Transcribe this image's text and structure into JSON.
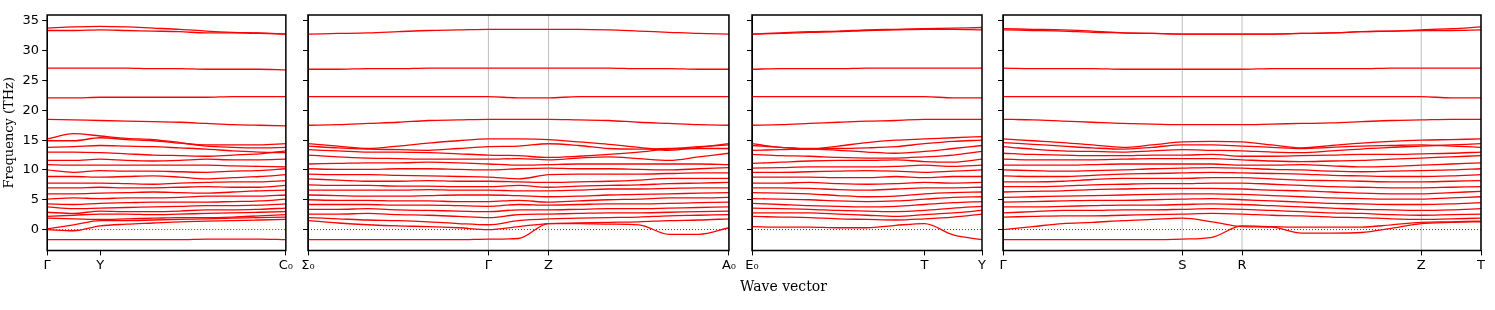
{
  "chart_data": [
    {
      "type": "line",
      "ylabel": "Frequency (THz)",
      "legend": false,
      "tick_labels": "xy",
      "categories": [
        "Γ",
        null,
        "Y",
        null,
        null,
        null,
        null,
        null,
        null,
        "C₀"
      ],
      "ylim": [
        -3.5,
        36
      ],
      "yticks": [
        0,
        5,
        10,
        15,
        20,
        25,
        30,
        35
      ],
      "ref_lines": [
        {
          "axis": "y",
          "value": 0,
          "color": "#0000ff",
          "line_style": "dotted"
        }
      ],
      "series": [
        {
          "color": "#ff0000",
          "values": [
            33.8,
            34.0,
            34.1,
            34.0,
            33.8,
            33.6,
            33.3,
            33.1,
            33.0,
            32.8
          ]
        },
        {
          "color": "#ff0000",
          "values": [
            33.4,
            33.4,
            33.5,
            33.4,
            33.3,
            33.2,
            33.0,
            33.0,
            32.9,
            32.8
          ]
        },
        {
          "color": "#ff0000",
          "values": [
            27.1,
            27.1,
            27.1,
            27.1,
            27.0,
            27.0,
            26.9,
            26.9,
            26.9,
            26.8
          ]
        },
        {
          "color": "#ff0000",
          "values": [
            22.1,
            22.1,
            22.2,
            22.2,
            22.2,
            22.2,
            22.2,
            22.3,
            22.3,
            22.3
          ]
        },
        {
          "color": "#ff0000",
          "values": [
            18.5,
            18.4,
            18.3,
            18.2,
            18.1,
            18.0,
            17.8,
            17.6,
            17.5,
            17.4
          ]
        },
        {
          "color": "#ff0000",
          "values": [
            15.2,
            16.1,
            15.7,
            15.3,
            15.1,
            14.6,
            14.0,
            13.8,
            13.7,
            13.8
          ]
        },
        {
          "color": "#ff0000",
          "values": [
            14.9,
            14.9,
            15.4,
            15.1,
            14.9,
            14.5,
            14.2,
            14.2,
            14.2,
            14.4
          ]
        },
        {
          "color": "#ff0000",
          "values": [
            13.8,
            13.9,
            14.1,
            14.0,
            13.9,
            13.7,
            13.5,
            13.2,
            13.0,
            12.9
          ]
        },
        {
          "color": "#ff0000",
          "values": [
            13.0,
            13.0,
            12.9,
            12.7,
            12.5,
            12.4,
            12.3,
            12.5,
            12.7,
            13.2
          ]
        },
        {
          "color": "#ff0000",
          "values": [
            11.6,
            11.6,
            11.8,
            11.6,
            11.5,
            11.6,
            11.8,
            11.7,
            11.7,
            11.8
          ]
        },
        {
          "color": "#ff0000",
          "values": [
            10.9,
            10.8,
            10.8,
            10.8,
            10.8,
            10.8,
            10.8,
            10.7,
            10.6,
            10.5
          ]
        },
        {
          "color": "#ff0000",
          "values": [
            10.0,
            9.6,
            9.9,
            9.8,
            9.8,
            9.7,
            9.6,
            9.8,
            9.9,
            10.2
          ]
        },
        {
          "color": "#ff0000",
          "values": [
            8.9,
            8.9,
            8.8,
            8.9,
            9.0,
            8.8,
            8.5,
            8.7,
            8.9,
            9.2
          ]
        },
        {
          "color": "#ff0000",
          "values": [
            7.8,
            7.8,
            7.8,
            7.7,
            7.6,
            7.8,
            7.9,
            8.0,
            8.0,
            8.2
          ]
        },
        {
          "color": "#ff0000",
          "values": [
            7.0,
            7.0,
            7.1,
            7.0,
            7.0,
            7.1,
            7.2,
            7.1,
            7.1,
            7.4
          ]
        },
        {
          "color": "#ff0000",
          "values": [
            6.0,
            6.0,
            6.1,
            6.2,
            6.3,
            6.2,
            6.1,
            6.3,
            6.5,
            6.6
          ]
        },
        {
          "color": "#ff0000",
          "values": [
            5.1,
            5.3,
            5.2,
            5.3,
            5.3,
            5.4,
            5.6,
            5.6,
            5.6,
            5.8
          ]
        },
        {
          "color": "#ff0000",
          "values": [
            4.3,
            4.2,
            4.4,
            4.5,
            4.6,
            4.6,
            4.6,
            4.7,
            4.8,
            5.1
          ]
        },
        {
          "color": "#ff0000",
          "values": [
            3.8,
            3.5,
            3.6,
            3.7,
            3.8,
            3.9,
            4.0,
            4.0,
            4.1,
            4.3
          ]
        },
        {
          "color": "#ff0000",
          "values": [
            2.9,
            2.7,
            3.1,
            3.0,
            3.0,
            3.1,
            3.3,
            3.3,
            3.4,
            3.6
          ]
        },
        {
          "color": "#ff0000",
          "values": [
            2.2,
            2.4,
            2.6,
            2.6,
            2.5,
            2.6,
            2.7,
            2.8,
            2.9,
            3.0
          ]
        },
        {
          "color": "#ff0000",
          "values": [
            1.9,
            1.8,
            1.7,
            1.8,
            1.9,
            2.0,
            2.0,
            2.1,
            2.3,
            2.5
          ]
        },
        {
          "color": "#ff0000",
          "values": [
            0.1,
            0.8,
            1.5,
            1.5,
            1.6,
            1.7,
            1.8,
            1.9,
            2.0,
            2.1
          ]
        },
        {
          "color": "#ff0000",
          "values": [
            0,
            -0.2,
            0.6,
            0.9,
            1.1,
            1.3,
            1.4,
            1.5,
            1.6,
            1.7
          ]
        },
        {
          "color": "#ff0000",
          "values": [
            -1.7,
            -1.7,
            -1.7,
            -1.7,
            -1.7,
            -1.7,
            -1.6,
            -1.6,
            -1.6,
            -1.7
          ]
        }
      ]
    },
    {
      "type": "line",
      "grid": "x",
      "legend": false,
      "tick_labels": "x",
      "categories": [
        "Σ₀",
        null,
        null,
        null,
        null,
        null,
        "Γ",
        null,
        "Z",
        null,
        null,
        null,
        null,
        null,
        "A₀"
      ],
      "ylim": [
        -3.5,
        36
      ],
      "yticks": [
        0,
        5,
        10,
        15,
        20,
        25,
        30,
        35
      ],
      "ref_lines": [
        {
          "axis": "y",
          "value": 0,
          "color": "#0000ff",
          "line_style": "dotted"
        }
      ],
      "series": [
        {
          "color": "#ff0000",
          "values": [
            32.8,
            32.9,
            33.0,
            33.2,
            33.4,
            33.5,
            33.6,
            33.6,
            33.6,
            33.6,
            33.5,
            33.3,
            33.1,
            32.9,
            32.8
          ]
        },
        {
          "color": "#ff0000",
          "values": [
            26.9,
            26.9,
            27.0,
            27.0,
            27.1,
            27.1,
            27.1,
            27.1,
            27.1,
            27.1,
            27.1,
            27.0,
            27.0,
            26.9,
            26.9
          ]
        },
        {
          "color": "#ff0000",
          "values": [
            22.3,
            22.3,
            22.3,
            22.3,
            22.3,
            22.3,
            22.3,
            22.1,
            22.1,
            22.3,
            22.3,
            22.3,
            22.3,
            22.3,
            22.3
          ]
        },
        {
          "color": "#ff0000",
          "values": [
            17.5,
            17.6,
            17.8,
            18.0,
            18.3,
            18.4,
            18.5,
            18.5,
            18.5,
            18.4,
            18.3,
            18.0,
            17.8,
            17.6,
            17.5
          ]
        },
        {
          "color": "#ff0000",
          "values": [
            14.4,
            14.0,
            13.6,
            14.0,
            14.5,
            14.9,
            15.2,
            15.2,
            15.1,
            14.7,
            14.3,
            13.8,
            13.3,
            13.8,
            14.4
          ]
        },
        {
          "color": "#ff0000",
          "values": [
            14.0,
            13.7,
            13.5,
            13.4,
            13.3,
            13.6,
            13.9,
            14.0,
            14.4,
            14.1,
            13.6,
            13.5,
            13.6,
            13.9,
            14.2
          ]
        },
        {
          "color": "#ff0000",
          "values": [
            13.4,
            13.2,
            13.0,
            13.0,
            12.9,
            12.7,
            12.5,
            12.4,
            12.1,
            12.3,
            12.6,
            13.0,
            13.5,
            13.6,
            13.6
          ]
        },
        {
          "color": "#ff0000",
          "values": [
            12.5,
            12.2,
            12.0,
            11.9,
            11.8,
            11.8,
            11.8,
            11.9,
            11.7,
            12.0,
            12.2,
            11.9,
            11.6,
            12.2,
            12.8
          ]
        },
        {
          "color": "#ff0000",
          "values": [
            11.0,
            11.1,
            11.2,
            11.2,
            11.3,
            11.2,
            11.0,
            10.8,
            10.9,
            11.0,
            11.0,
            11.0,
            11.0,
            11.0,
            10.9
          ]
        },
        {
          "color": "#ff0000",
          "values": [
            10.2,
            10.1,
            10.1,
            10.2,
            10.2,
            10.1,
            10.0,
            10.2,
            10.3,
            10.2,
            10.2,
            10.1,
            10.0,
            10.2,
            10.4
          ]
        },
        {
          "color": "#ff0000",
          "values": [
            9.3,
            9.2,
            9.2,
            9.1,
            9.0,
            8.9,
            8.8,
            8.5,
            9.2,
            9.3,
            9.3,
            9.3,
            9.4,
            9.5,
            9.5
          ]
        },
        {
          "color": "#ff0000",
          "values": [
            8.5,
            8.3,
            8.1,
            8.1,
            8.2,
            8.1,
            8.1,
            8.0,
            7.9,
            8.0,
            8.1,
            8.3,
            8.6,
            8.6,
            8.6
          ]
        },
        {
          "color": "#ff0000",
          "values": [
            7.5,
            7.4,
            7.4,
            7.3,
            7.3,
            7.2,
            7.2,
            7.4,
            7.1,
            7.3,
            7.4,
            7.5,
            7.7,
            7.8,
            7.9
          ]
        },
        {
          "color": "#ff0000",
          "values": [
            6.6,
            6.6,
            6.6,
            6.6,
            6.7,
            6.6,
            6.6,
            6.5,
            6.5,
            6.6,
            6.8,
            6.8,
            6.9,
            7.0,
            7.0
          ]
        },
        {
          "color": "#ff0000",
          "values": [
            5.8,
            5.7,
            5.6,
            5.6,
            5.7,
            5.8,
            5.8,
            5.7,
            5.5,
            5.6,
            5.8,
            5.9,
            6.0,
            6.1,
            6.2
          ]
        },
        {
          "color": "#ff0000",
          "values": [
            5.0,
            4.9,
            4.9,
            4.8,
            4.8,
            4.7,
            4.7,
            4.9,
            4.6,
            4.8,
            5.0,
            5.1,
            5.3,
            5.3,
            5.4
          ]
        },
        {
          "color": "#ff0000",
          "values": [
            4.2,
            4.2,
            4.2,
            4.1,
            4.1,
            4.0,
            3.9,
            4.2,
            4.1,
            4.2,
            4.3,
            4.3,
            4.4,
            4.5,
            4.6
          ]
        },
        {
          "color": "#ff0000",
          "values": [
            3.4,
            3.4,
            3.5,
            3.3,
            3.2,
            3.1,
            3.0,
            3.3,
            3.3,
            3.4,
            3.5,
            3.5,
            3.6,
            3.7,
            3.8
          ]
        },
        {
          "color": "#ff0000",
          "values": [
            2.6,
            2.6,
            2.7,
            2.5,
            2.4,
            2.2,
            2.0,
            2.5,
            2.6,
            2.7,
            2.8,
            2.8,
            2.9,
            3.0,
            3.1
          ]
        },
        {
          "color": "#ff0000",
          "values": [
            2.0,
            1.8,
            1.6,
            1.5,
            1.3,
            1.0,
            0.8,
            1.5,
            1.8,
            1.9,
            2.0,
            2.1,
            2.3,
            2.4,
            2.5
          ]
        },
        {
          "color": "#ff0000",
          "values": [
            1.5,
            1.1,
            0.8,
            0.6,
            0.5,
            0.3,
            0,
            0.5,
            1.0,
            1.1,
            1.2,
            1.3,
            1.5,
            1.6,
            1.8
          ]
        },
        {
          "color": "#ff0000",
          "values": [
            -1.7,
            -1.7,
            -1.7,
            -1.7,
            -1.7,
            -1.7,
            -1.6,
            -1.5,
            1.0,
            1.0,
            0.9,
            0.8,
            -0.8,
            -0.8,
            0.3
          ]
        }
      ]
    },
    {
      "type": "line",
      "xlabel": "Wave vector",
      "legend": false,
      "tick_labels": "x",
      "categories": [
        "E₀",
        null,
        null,
        null,
        null,
        null,
        "T",
        null,
        "Y"
      ],
      "ylim": [
        -3.5,
        36
      ],
      "yticks": [
        0,
        5,
        10,
        15,
        20,
        25,
        30,
        35
      ],
      "ref_lines": [
        {
          "axis": "y",
          "value": 0,
          "color": "#0000ff",
          "line_style": "dotted"
        }
      ],
      "series": [
        {
          "color": "#ff0000",
          "values": [
            32.8,
            33.0,
            33.2,
            33.3,
            33.5,
            33.6,
            33.7,
            33.8,
            33.9
          ]
        },
        {
          "color": "#ff0000",
          "values": [
            32.8,
            32.9,
            33.1,
            33.2,
            33.4,
            33.5,
            33.6,
            33.6,
            33.5
          ]
        },
        {
          "color": "#ff0000",
          "values": [
            26.9,
            27.0,
            27.0,
            27.0,
            27.1,
            27.1,
            27.1,
            27.1,
            27.1
          ]
        },
        {
          "color": "#ff0000",
          "values": [
            22.3,
            22.3,
            22.3,
            22.3,
            22.3,
            22.3,
            22.3,
            22.1,
            22.1
          ]
        },
        {
          "color": "#ff0000",
          "values": [
            17.5,
            17.6,
            17.8,
            18.0,
            18.2,
            18.3,
            18.5,
            18.5,
            18.5
          ]
        },
        {
          "color": "#ff0000",
          "values": [
            14.4,
            13.8,
            13.5,
            14.0,
            14.6,
            15.0,
            15.2,
            15.4,
            15.6
          ]
        },
        {
          "color": "#ff0000",
          "values": [
            14.1,
            13.8,
            13.6,
            13.6,
            13.7,
            13.9,
            14.4,
            14.8,
            15.0
          ]
        },
        {
          "color": "#ff0000",
          "values": [
            13.3,
            13.4,
            13.5,
            13.3,
            13.0,
            12.8,
            13.1,
            13.6,
            14.1
          ]
        },
        {
          "color": "#ff0000",
          "values": [
            12.6,
            12.4,
            12.3,
            12.1,
            12.0,
            12.0,
            12.2,
            12.5,
            13.1
          ]
        },
        {
          "color": "#ff0000",
          "values": [
            11.1,
            11.3,
            11.5,
            11.6,
            11.6,
            11.7,
            11.4,
            11.3,
            11.8
          ]
        },
        {
          "color": "#ff0000",
          "values": [
            10.3,
            10.4,
            10.5,
            10.5,
            10.5,
            10.6,
            10.8,
            10.6,
            10.8
          ]
        },
        {
          "color": "#ff0000",
          "values": [
            9.6,
            9.6,
            9.7,
            9.8,
            9.9,
            9.8,
            9.6,
            9.8,
            10.0
          ]
        },
        {
          "color": "#ff0000",
          "values": [
            8.8,
            8.8,
            8.8,
            8.7,
            8.7,
            8.9,
            8.7,
            8.9,
            8.9
          ]
        },
        {
          "color": "#ff0000",
          "values": [
            7.8,
            7.8,
            7.9,
            7.7,
            7.6,
            7.7,
            7.9,
            7.8,
            7.9
          ]
        },
        {
          "color": "#ff0000",
          "values": [
            7.0,
            7.0,
            6.9,
            6.7,
            6.6,
            6.8,
            7.0,
            7.0,
            7.1
          ]
        },
        {
          "color": "#ff0000",
          "values": [
            6.2,
            6.1,
            6.0,
            5.7,
            5.5,
            5.6,
            6.0,
            6.2,
            6.3
          ]
        },
        {
          "color": "#ff0000",
          "values": [
            5.2,
            5.1,
            5.0,
            4.8,
            4.7,
            4.8,
            5.1,
            5.4,
            5.5
          ]
        },
        {
          "color": "#ff0000",
          "values": [
            4.4,
            4.2,
            4.0,
            3.9,
            3.8,
            3.9,
            4.2,
            4.5,
            4.7
          ]
        },
        {
          "color": "#ff0000",
          "values": [
            3.6,
            3.5,
            3.4,
            3.2,
            3.1,
            3.0,
            3.2,
            3.6,
            3.9
          ]
        },
        {
          "color": "#ff0000",
          "values": [
            2.8,
            2.8,
            2.8,
            2.6,
            2.4,
            2.2,
            2.5,
            2.8,
            3.2
          ]
        },
        {
          "color": "#ff0000",
          "values": [
            2.2,
            2.1,
            2.0,
            1.8,
            1.7,
            1.6,
            1.8,
            2.1,
            2.6
          ]
        },
        {
          "color": "#ff0000",
          "values": [
            0.5,
            0.4,
            0.4,
            0.3,
            0.3,
            0.7,
            1.0,
            -0.9,
            -1.7
          ]
        }
      ]
    },
    {
      "type": "line",
      "grid": "x",
      "legend": false,
      "tick_labels": "x",
      "categories": [
        "Γ",
        null,
        null,
        null,
        null,
        null,
        "S",
        null,
        "R",
        null,
        null,
        null,
        null,
        null,
        "Z",
        null,
        "T"
      ],
      "ylim": [
        -3.5,
        36
      ],
      "yticks": [
        0,
        5,
        10,
        15,
        20,
        25,
        30,
        35
      ],
      "ref_lines": [
        {
          "axis": "y",
          "value": 0,
          "color": "#0000ff",
          "line_style": "dotted"
        }
      ],
      "series": [
        {
          "color": "#ff0000",
          "values": [
            33.7,
            33.6,
            33.5,
            33.3,
            33.0,
            32.9,
            32.8,
            32.8,
            32.8,
            32.8,
            32.9,
            33.0,
            33.2,
            33.3,
            33.5,
            33.7,
            34.0
          ]
        },
        {
          "color": "#ff0000",
          "values": [
            33.5,
            33.4,
            33.3,
            33.1,
            33.0,
            32.9,
            32.8,
            32.8,
            32.8,
            32.8,
            32.9,
            33.0,
            33.2,
            33.3,
            33.4,
            33.4,
            33.5
          ]
        },
        {
          "color": "#ff0000",
          "values": [
            27.1,
            27.0,
            27.0,
            27.0,
            26.9,
            26.9,
            26.9,
            26.9,
            26.9,
            27.0,
            27.0,
            27.0,
            27.0,
            27.1,
            27.1,
            27.1,
            27.1
          ]
        },
        {
          "color": "#ff0000",
          "values": [
            22.3,
            22.3,
            22.3,
            22.3,
            22.3,
            22.3,
            22.3,
            22.3,
            22.3,
            22.3,
            22.3,
            22.3,
            22.3,
            22.3,
            22.3,
            22.1,
            22.1
          ]
        },
        {
          "color": "#ff0000",
          "values": [
            18.5,
            18.4,
            18.2,
            18.0,
            17.8,
            17.7,
            17.6,
            17.6,
            17.6,
            17.7,
            17.8,
            17.9,
            18.1,
            18.3,
            18.4,
            18.5,
            18.5
          ]
        },
        {
          "color": "#ff0000",
          "values": [
            15.2,
            14.9,
            14.6,
            14.2,
            13.8,
            14.2,
            14.7,
            14.8,
            14.7,
            14.2,
            13.7,
            14.1,
            14.5,
            14.8,
            15.0,
            15.1,
            15.2
          ]
        },
        {
          "color": "#ff0000",
          "values": [
            14.6,
            14.3,
            14.0,
            13.7,
            13.5,
            13.8,
            14.2,
            14.2,
            14.0,
            13.8,
            13.6,
            13.8,
            14.0,
            14.1,
            14.2,
            14.0,
            13.8
          ]
        },
        {
          "color": "#ff0000",
          "values": [
            13.9,
            13.5,
            13.2,
            13.1,
            13.0,
            13.2,
            13.4,
            13.3,
            13.2,
            13.0,
            12.9,
            13.2,
            13.5,
            13.8,
            14.0,
            14.2,
            14.4
          ]
        },
        {
          "color": "#ff0000",
          "values": [
            12.8,
            12.6,
            12.5,
            12.4,
            12.4,
            12.5,
            12.5,
            12.6,
            12.3,
            12.3,
            12.4,
            12.5,
            12.6,
            12.6,
            12.7,
            12.8,
            13.0
          ]
        },
        {
          "color": "#ff0000",
          "values": [
            11.8,
            11.7,
            11.7,
            11.7,
            11.8,
            11.9,
            11.9,
            11.9,
            11.7,
            11.5,
            11.4,
            11.5,
            11.6,
            11.8,
            12.0,
            12.2,
            12.4
          ]
        },
        {
          "color": "#ff0000",
          "values": [
            10.8,
            10.8,
            10.8,
            10.9,
            11.0,
            11.0,
            11.0,
            11.0,
            10.8,
            10.8,
            10.9,
            10.7,
            10.5,
            10.6,
            10.8,
            11.0,
            11.2
          ]
        },
        {
          "color": "#ff0000",
          "values": [
            10.0,
            9.9,
            9.8,
            9.9,
            10.0,
            10.2,
            10.3,
            10.4,
            10.3,
            10.1,
            10.0,
            9.8,
            9.7,
            9.8,
            9.9,
            10.0,
            10.2
          ]
        },
        {
          "color": "#ff0000",
          "values": [
            9.0,
            8.9,
            8.9,
            9.1,
            9.3,
            9.4,
            9.5,
            9.6,
            9.5,
            9.4,
            9.3,
            9.1,
            9.0,
            8.9,
            8.9,
            9.0,
            9.2
          ]
        },
        {
          "color": "#ff0000",
          "values": [
            8.0,
            8.0,
            8.1,
            8.4,
            8.6,
            8.6,
            8.6,
            8.7,
            8.7,
            8.5,
            8.3,
            8.2,
            8.1,
            8.0,
            8.0,
            8.1,
            8.2
          ]
        },
        {
          "color": "#ff0000",
          "values": [
            7.2,
            7.2,
            7.3,
            7.5,
            7.6,
            7.7,
            7.7,
            7.8,
            7.8,
            7.6,
            7.4,
            7.2,
            7.1,
            7.0,
            7.0,
            7.1,
            7.2
          ]
        },
        {
          "color": "#ff0000",
          "values": [
            6.3,
            6.4,
            6.5,
            6.7,
            6.8,
            6.9,
            6.9,
            6.9,
            6.8,
            6.6,
            6.5,
            6.3,
            6.1,
            6.0,
            6.0,
            6.2,
            6.4
          ]
        },
        {
          "color": "#ff0000",
          "values": [
            5.4,
            5.5,
            5.6,
            5.7,
            5.8,
            5.9,
            6.0,
            6.0,
            5.9,
            5.7,
            5.5,
            5.3,
            5.2,
            5.1,
            5.1,
            5.3,
            5.5
          ]
        },
        {
          "color": "#ff0000",
          "values": [
            4.6,
            4.7,
            4.8,
            4.9,
            4.9,
            5.0,
            5.1,
            5.2,
            5.0,
            4.8,
            4.6,
            4.4,
            4.3,
            4.2,
            4.2,
            4.3,
            4.5
          ]
        },
        {
          "color": "#ff0000",
          "values": [
            3.8,
            3.8,
            3.9,
            4.0,
            4.1,
            4.1,
            4.2,
            4.3,
            4.2,
            4.0,
            3.8,
            3.6,
            3.4,
            3.3,
            3.2,
            3.3,
            3.5
          ]
        },
        {
          "color": "#ff0000",
          "values": [
            2.8,
            3.0,
            3.2,
            3.2,
            3.3,
            3.3,
            3.4,
            3.5,
            3.4,
            3.2,
            3.0,
            2.8,
            2.7,
            2.5,
            2.4,
            2.5,
            2.6
          ]
        },
        {
          "color": "#ff0000",
          "values": [
            2.1,
            2.2,
            2.3,
            2.3,
            2.4,
            2.5,
            2.6,
            2.7,
            2.6,
            2.4,
            2.3,
            2.1,
            2.0,
            1.8,
            1.7,
            1.8,
            1.9
          ]
        },
        {
          "color": "#ff0000",
          "values": [
            0,
            0.5,
            1.0,
            1.2,
            1.5,
            1.7,
            1.9,
            1.3,
            0.5,
            0.4,
            -0.6,
            -0.6,
            -0.5,
            0.2,
            1.0,
            1.2,
            1.3
          ]
        },
        {
          "color": "#ff0000",
          "values": [
            -1.7,
            -1.7,
            -1.7,
            -1.7,
            -1.7,
            -1.7,
            -1.6,
            -1.3,
            0.6,
            0.5,
            0.4,
            0.4,
            0.4,
            0.8,
            1.2,
            1.3,
            1.4
          ]
        }
      ]
    }
  ]
}
